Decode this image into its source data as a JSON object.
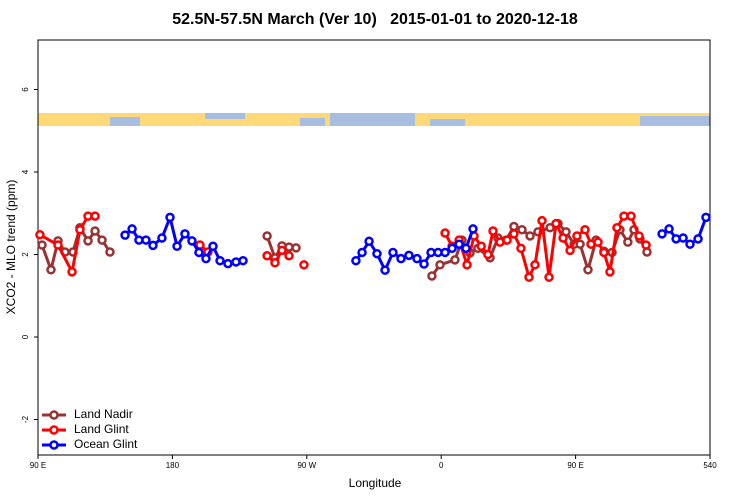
{
  "chart_data": {
    "type": "line",
    "title": "52.5N-57.5N March (Ver 10)   2015-01-01 to 2020-12-18",
    "x_label": "Longitude",
    "y_label": "XCO2 - MLO trend (ppm)",
    "xlim": [
      90,
      540
    ],
    "xticks": [
      {
        "value": 90,
        "label": "90 E"
      },
      180,
      {
        "value": 270,
        "label": "90 W"
      },
      {
        "value": 360,
        "label": "0"
      },
      {
        "value": 450,
        "label": "90 E"
      },
      540
    ],
    "ylim": [
      -2.86,
      7.2
    ],
    "yticks": [
      -2,
      0,
      2,
      4,
      6
    ],
    "legend": "bottom-left",
    "series": [
      {
        "name": "Land Nadir",
        "color": "#993333",
        "x": [
          92.7,
          98.7,
          103.4,
          108.1,
          113.4,
          118.1,
          123.5,
          128.2,
          132.9,
          138.2,
          null,
          243.4,
          248.7,
          253.4,
          258.1,
          262.8,
          null,
          353.8,
          359.2,
          369.2,
          373.9,
          379.3,
          384.6,
          392.7,
          398,
          403.4,
          408.7,
          414.1,
          419.5,
          424.8,
          432.9,
          438.2,
          443.6,
          449,
          453,
          458.3,
          463.7,
          469,
          474.4,
          479.7,
          485,
          489.1,
          493.1,
          497.8
        ],
        "values": [
          2.23,
          1.63,
          2.33,
          2.06,
          2.06,
          2.65,
          2.33,
          2.57,
          2.35,
          2.06,
          null,
          2.45,
          1.92,
          2.21,
          2.18,
          2.16,
          null,
          1.48,
          1.75,
          1.87,
          2.35,
          2.04,
          2.15,
          1.92,
          2.4,
          2.35,
          2.68,
          2.6,
          2.45,
          2.55,
          2.65,
          2.75,
          2.55,
          2.25,
          2.25,
          1.63,
          2.35,
          2.08,
          2.05,
          2.6,
          2.3,
          2.6,
          2.38,
          2.06
        ]
      },
      {
        "name": "Land Glint",
        "color": "#ff0000",
        "x": [
          91.3,
          103.4,
          112.8,
          118.1,
          123.5,
          128.2,
          null,
          198.5,
          203.8,
          null,
          243.4,
          248.7,
          253.4,
          258.1,
          null,
          268.1,
          null,
          362.6,
          367.3,
          372,
          377.3,
          382,
          386.8,
          391.3,
          394.7,
          399.4,
          404.1,
          408.7,
          413.4,
          418.8,
          422.8,
          427.5,
          432.2,
          436.9,
          441.6,
          446.3,
          450.9,
          456.3,
          460.3,
          465,
          469,
          473,
          477.7,
          482.4,
          487.1,
          492.5,
          497.2
        ],
        "values": [
          2.48,
          2.23,
          1.58,
          2.6,
          2.93,
          2.93,
          null,
          2.23,
          2.06,
          null,
          1.97,
          1.8,
          2.1,
          1.97,
          null,
          1.75,
          null,
          2.52,
          2.2,
          2.35,
          1.75,
          2.45,
          2.2,
          2.0,
          2.57,
          2.3,
          2.35,
          2.5,
          2.15,
          1.45,
          1.75,
          2.82,
          1.45,
          2.75,
          2.4,
          2.1,
          2.45,
          2.6,
          2.25,
          2.3,
          2.05,
          1.58,
          2.65,
          2.93,
          2.93,
          2.45,
          2.23
        ]
      },
      {
        "name": "Ocean Glint",
        "color": "#0000ff",
        "x": [
          148.3,
          153,
          157.6,
          162.3,
          167,
          173,
          178.4,
          183.1,
          188.4,
          193.1,
          197.8,
          202.5,
          207.2,
          211.9,
          217.2,
          222.6,
          227.3,
          null,
          302.9,
          307,
          311.7,
          317,
          322.4,
          327.7,
          333.1,
          338.4,
          343.8,
          348.5,
          353.2,
          357.9,
          362.6,
          367.3,
          372,
          376.6,
          381.3,
          null,
          507.9,
          512.6,
          517.3,
          522,
          526.6,
          532,
          537.3
        ],
        "values": [
          2.47,
          2.62,
          2.35,
          2.35,
          2.22,
          2.4,
          2.9,
          2.2,
          2.5,
          2.33,
          2.05,
          1.9,
          2.2,
          1.85,
          1.78,
          1.82,
          1.85,
          null,
          1.85,
          2.05,
          2.32,
          2.02,
          1.62,
          2.05,
          1.9,
          1.98,
          1.9,
          1.77,
          2.05,
          2.05,
          2.05,
          2.15,
          2.25,
          2.15,
          2.62,
          null,
          2.5,
          2.62,
          2.38,
          2.4,
          2.25,
          2.38,
          2.9
        ]
      }
    ]
  }
}
